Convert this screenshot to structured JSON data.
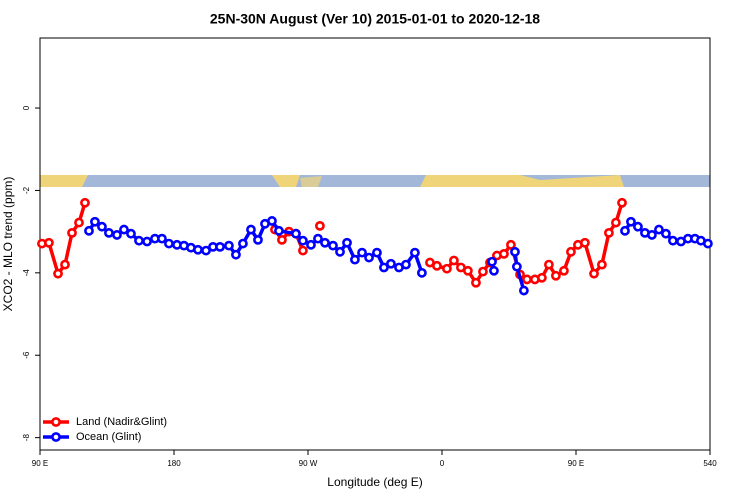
{
  "chart_data": {
    "type": "line",
    "title": "25N-30N August (Ver 10)   2015-01-01 to 2020-12-18",
    "x_label": "Longitude (deg E)",
    "y_label": "XCO2 - MLO trend (ppm)",
    "xlim": [
      90,
      540
    ],
    "ylim": [
      -8.3,
      1.7
    ],
    "xticks": [
      {
        "value": 90,
        "label": "90 E"
      },
      180,
      {
        "value": 270,
        "label": "90 W"
      },
      {
        "value": 360,
        "label": "0"
      },
      {
        "value": 450,
        "label": "90 E"
      },
      540
    ],
    "yticks": [
      0,
      -2,
      -4,
      -6,
      -8
    ],
    "legend": "bottom-left",
    "series": [
      {
        "name": "Land (Nadir&Glint)",
        "color": "#ff0000",
        "x": [
          91.3,
          96.0,
          102.1,
          106.8,
          111.5,
          116.2,
          120.2,
          null,
          247.8,
          252.5,
          257.2,
          261.9,
          266.6,
          null,
          278.0,
          null,
          351.9,
          356.6,
          363.3,
          368.0,
          372.7,
          377.4,
          382.8,
          387.5,
          392.2,
          396.9,
          401.6,
          406.3,
          412.4,
          417.1,
          422.4,
          427.1,
          431.8,
          436.5,
          441.9,
          446.6,
          451.3,
          456.0,
          462.1,
          467.4,
          472.1,
          476.8,
          480.9
        ],
        "values": [
          -3.29,
          -3.27,
          -4.02,
          -3.8,
          -3.03,
          -2.78,
          -2.3,
          null,
          -2.95,
          -3.2,
          -3.0,
          -3.05,
          -3.46,
          null,
          -2.86,
          null,
          -3.75,
          -3.83,
          -3.9,
          -3.7,
          -3.87,
          -3.95,
          -4.24,
          -3.97,
          -3.75,
          -3.58,
          -3.54,
          -3.32,
          -4.04,
          -4.16,
          -4.16,
          -4.12,
          -3.8,
          -4.07,
          -3.95,
          -3.49,
          -3.32,
          -3.27,
          -4.02,
          -3.8,
          -3.03,
          -2.78,
          -2.3
        ]
      },
      {
        "name": "Ocean (Glint)",
        "color": "#0000ff",
        "x": [
          122.9,
          126.9,
          131.6,
          136.3,
          141.7,
          146.4,
          151.1,
          156.5,
          161.9,
          167.2,
          171.9,
          176.6,
          182.0,
          186.7,
          191.4,
          196.1,
          201.5,
          206.2,
          210.9,
          216.9,
          221.6,
          226.3,
          231.7,
          236.4,
          241.1,
          245.8,
          250.5,
          261.9,
          266.6,
          272.0,
          276.7,
          281.4,
          286.8,
          291.5,
          296.2,
          301.5,
          306.3,
          311.0,
          316.3,
          321.0,
          325.7,
          331.1,
          335.8,
          341.8,
          346.5,
          null,
          393.6,
          394.9,
          null,
          409.0,
          410.3,
          415.0,
          null,
          482.9,
          486.9,
          491.6,
          496.3,
          501.0,
          505.7,
          510.4,
          515.1,
          520.5,
          525.2,
          529.9,
          533.9,
          538.6
        ],
        "values": [
          -2.98,
          -2.76,
          -2.88,
          -3.03,
          -3.08,
          -2.95,
          -3.05,
          -3.22,
          -3.24,
          -3.17,
          -3.17,
          -3.29,
          -3.32,
          -3.34,
          -3.39,
          -3.44,
          -3.46,
          -3.37,
          -3.37,
          -3.34,
          -3.56,
          -3.29,
          -2.95,
          -3.2,
          -2.81,
          -2.74,
          -2.98,
          -3.05,
          -3.22,
          -3.32,
          -3.17,
          -3.27,
          -3.34,
          -3.49,
          -3.27,
          -3.68,
          -3.51,
          -3.63,
          -3.51,
          -3.87,
          -3.78,
          -3.87,
          -3.8,
          -3.51,
          -4.0,
          null,
          -3.73,
          -3.95,
          null,
          -3.49,
          -3.85,
          -4.43,
          null,
          -2.98,
          -2.76,
          -2.88,
          -3.03,
          -3.08,
          -2.95,
          -3.05,
          -3.22,
          -3.24,
          -3.17,
          -3.17,
          -3.22,
          -3.29
        ]
      }
    ]
  }
}
